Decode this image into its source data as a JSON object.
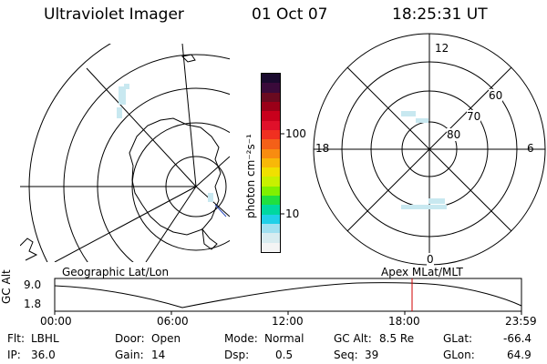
{
  "header": {
    "instrument": "Ultraviolet Imager",
    "date": "01 Oct 07",
    "time": "18:25:31 UT"
  },
  "colorbar": {
    "unit_label": "photon cm⁻²s⁻¹",
    "ticks": [
      "100",
      "10"
    ],
    "colors": [
      "#1a0a2e",
      "#3a0a3a",
      "#6a0a20",
      "#9a0018",
      "#c8001c",
      "#e0102a",
      "#f03020",
      "#f46018",
      "#f88c10",
      "#f8b808",
      "#f0e000",
      "#c8f000",
      "#80f000",
      "#20e040",
      "#00d8a0",
      "#20d0e8",
      "#a0e0f0",
      "#d8ecf0",
      "#f4f4f4"
    ]
  },
  "geo_map": {
    "label": "Geographic Lat/Lon"
  },
  "polar_plot": {
    "label": "Apex MLat/MLT",
    "mlt_labels": {
      "top": "12",
      "right": "6",
      "bottom": "0",
      "left": "18"
    },
    "lat_labels": [
      "60",
      "70",
      "80"
    ]
  },
  "altitude_plot": {
    "axis_label": "GC Alt",
    "y_ticks": [
      "9.0",
      "1.8"
    ],
    "x_ticks": [
      "00:00",
      "06:00",
      "12:00",
      "18:00",
      "23:59"
    ],
    "marker_color": "#d00000"
  },
  "status": {
    "filter": {
      "label": "Flt:",
      "value": "LBHL"
    },
    "ip": {
      "label": "IP:",
      "value": "36.0"
    },
    "door": {
      "label": "Door:",
      "value": "Open"
    },
    "gain": {
      "label": "Gain:",
      "value": "14"
    },
    "mode": {
      "label": "Mode:",
      "value": "Normal"
    },
    "dsp": {
      "label": "Dsp:",
      "value": "0.5"
    },
    "gc_alt": {
      "label": "GC Alt:",
      "value": "8.5 Re"
    },
    "seq": {
      "label": "Seq:",
      "value": "39"
    },
    "glat": {
      "label": "GLat:",
      "value": "-66.4"
    },
    "glon": {
      "label": "GLon:",
      "value": "64.9"
    }
  }
}
